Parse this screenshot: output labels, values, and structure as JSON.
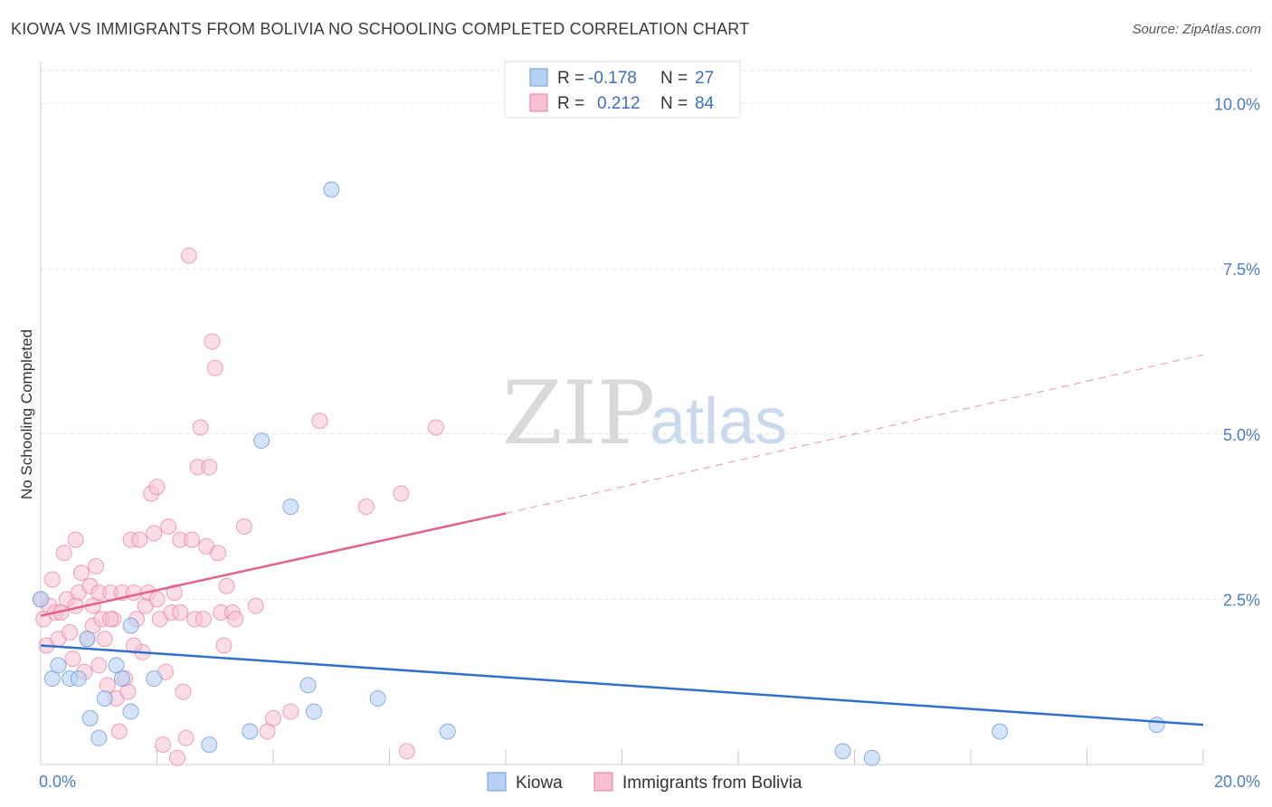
{
  "title": "KIOWA VS IMMIGRANTS FROM BOLIVIA NO SCHOOLING COMPLETED CORRELATION CHART",
  "source": "Source: ZipAtlas.com",
  "watermark": {
    "zip": "ZIP",
    "atlas": "atlas"
  },
  "legend": {
    "r_label": "R =",
    "n_label": "N =",
    "rows": [
      {
        "series": "Kiowa",
        "r": "-0.178",
        "n": "27"
      },
      {
        "series": "Immigrants from Bolivia",
        "r": "0.212",
        "n": "84"
      }
    ]
  },
  "chart_data": {
    "type": "scatter",
    "title": "KIOWA VS IMMIGRANTS FROM BOLIVIA NO SCHOOLING COMPLETED CORRELATION CHART",
    "xlabel": "",
    "ylabel": "No Schooling Completed",
    "xlim": [
      0,
      20
    ],
    "ylim": [
      0,
      10.5
    ],
    "x_tick_labels": [
      "0.0%",
      "20.0%"
    ],
    "y_tick_labels": [
      {
        "value": 2.5,
        "label": "2.5%"
      },
      {
        "value": 5.0,
        "label": "5.0%"
      },
      {
        "value": 7.5,
        "label": "7.5%"
      },
      {
        "value": 10.0,
        "label": "10.0%"
      }
    ],
    "grid": true,
    "colors": {
      "kiowa": "#6a9de0",
      "kiowa_fill": "#b8d0f2",
      "bolivia": "#e87aa0",
      "bolivia_fill": "#f7c1d3",
      "kiowa_line": "#2e6fd0",
      "bolivia_line": "#e0628d"
    },
    "series": [
      {
        "name": "Kiowa",
        "points": [
          [
            0.0,
            2.5
          ],
          [
            0.2,
            1.3
          ],
          [
            0.3,
            1.5
          ],
          [
            0.5,
            1.3
          ],
          [
            0.65,
            1.3
          ],
          [
            0.8,
            1.9
          ],
          [
            0.85,
            0.7
          ],
          [
            1.0,
            0.4
          ],
          [
            1.1,
            1.0
          ],
          [
            1.3,
            1.5
          ],
          [
            1.4,
            1.3
          ],
          [
            1.55,
            0.8
          ],
          [
            1.55,
            2.1
          ],
          [
            1.95,
            1.3
          ],
          [
            2.9,
            0.3
          ],
          [
            3.6,
            0.5
          ],
          [
            3.8,
            4.9
          ],
          [
            4.3,
            3.9
          ],
          [
            4.6,
            1.2
          ],
          [
            4.7,
            0.8
          ],
          [
            5.0,
            8.7
          ],
          [
            5.8,
            1.0
          ],
          [
            7.0,
            0.5
          ],
          [
            13.8,
            0.2
          ],
          [
            14.3,
            0.1
          ],
          [
            16.5,
            0.5
          ],
          [
            19.2,
            0.6
          ]
        ],
        "trend": {
          "x0": 0,
          "y0": 1.8,
          "x1": 20,
          "y1": 0.6
        }
      },
      {
        "name": "Immigrants from Bolivia",
        "points": [
          [
            0.0,
            2.5
          ],
          [
            0.05,
            2.2
          ],
          [
            0.1,
            1.8
          ],
          [
            0.15,
            2.4
          ],
          [
            0.2,
            2.8
          ],
          [
            0.25,
            2.3
          ],
          [
            0.3,
            1.9
          ],
          [
            0.35,
            2.3
          ],
          [
            0.4,
            3.2
          ],
          [
            0.45,
            2.5
          ],
          [
            0.5,
            2.0
          ],
          [
            0.55,
            1.6
          ],
          [
            0.6,
            3.4
          ],
          [
            0.65,
            2.6
          ],
          [
            0.7,
            2.9
          ],
          [
            0.75,
            1.4
          ],
          [
            0.8,
            1.9
          ],
          [
            0.85,
            2.7
          ],
          [
            0.9,
            2.1
          ],
          [
            0.95,
            3.0
          ],
          [
            1.0,
            2.6
          ],
          [
            1.05,
            2.2
          ],
          [
            1.1,
            1.9
          ],
          [
            1.15,
            1.2
          ],
          [
            1.2,
            2.6
          ],
          [
            1.25,
            2.2
          ],
          [
            1.3,
            1.0
          ],
          [
            1.35,
            0.5
          ],
          [
            1.4,
            2.6
          ],
          [
            1.45,
            1.3
          ],
          [
            1.5,
            1.1
          ],
          [
            1.55,
            3.4
          ],
          [
            1.6,
            2.6
          ],
          [
            1.65,
            2.2
          ],
          [
            1.7,
            3.4
          ],
          [
            1.75,
            1.7
          ],
          [
            1.8,
            2.4
          ],
          [
            1.85,
            2.6
          ],
          [
            1.9,
            4.1
          ],
          [
            1.95,
            3.5
          ],
          [
            2.0,
            4.2
          ],
          [
            2.05,
            2.2
          ],
          [
            2.1,
            0.3
          ],
          [
            2.15,
            1.4
          ],
          [
            2.2,
            3.6
          ],
          [
            2.25,
            2.3
          ],
          [
            2.3,
            2.6
          ],
          [
            2.35,
            0.1
          ],
          [
            2.4,
            3.4
          ],
          [
            2.45,
            1.1
          ],
          [
            2.5,
            0.4
          ],
          [
            2.55,
            7.7
          ],
          [
            2.6,
            3.4
          ],
          [
            2.65,
            2.2
          ],
          [
            2.7,
            4.5
          ],
          [
            2.75,
            5.1
          ],
          [
            2.8,
            2.2
          ],
          [
            2.85,
            3.3
          ],
          [
            2.9,
            4.5
          ],
          [
            2.95,
            6.4
          ],
          [
            3.0,
            6.0
          ],
          [
            3.05,
            3.2
          ],
          [
            3.1,
            2.3
          ],
          [
            3.15,
            1.8
          ],
          [
            3.2,
            2.7
          ],
          [
            3.3,
            2.3
          ],
          [
            3.35,
            2.2
          ],
          [
            3.5,
            3.6
          ],
          [
            3.7,
            2.4
          ],
          [
            3.9,
            0.5
          ],
          [
            4.0,
            0.7
          ],
          [
            4.3,
            0.8
          ],
          [
            4.8,
            5.2
          ],
          [
            5.6,
            3.9
          ],
          [
            6.2,
            4.1
          ],
          [
            6.3,
            0.2
          ],
          [
            6.8,
            5.1
          ],
          [
            0.9,
            2.4
          ],
          [
            1.0,
            1.5
          ],
          [
            1.6,
            1.8
          ],
          [
            1.2,
            2.2
          ],
          [
            0.6,
            2.4
          ],
          [
            2.0,
            2.5
          ],
          [
            2.4,
            2.3
          ]
        ],
        "trend": {
          "x0": 0,
          "y0": 2.25,
          "x1": 8,
          "y1": 3.8,
          "dashed_to_x": 20,
          "dashed_to_y": 6.2
        }
      }
    ]
  },
  "bottom_legend": [
    {
      "label": "Kiowa"
    },
    {
      "label": "Immigrants from Bolivia"
    }
  ]
}
